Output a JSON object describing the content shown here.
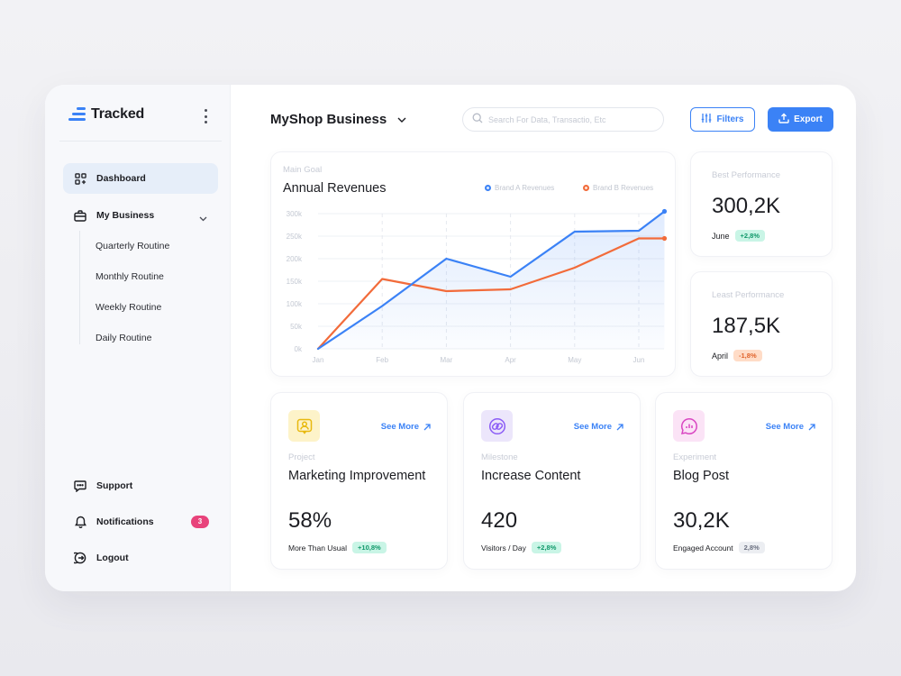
{
  "sidebar": {
    "logo_text": "Tracked",
    "nav": {
      "dashboard": "Dashboard",
      "my_business": "My Business",
      "sub_items": [
        "Quarterly Routine",
        "Monthly Routine",
        "Weekly Routine",
        "Daily Routine"
      ],
      "support": "Support",
      "notifications": "Notifications",
      "notifications_count": "3",
      "logout": "Logout"
    }
  },
  "header": {
    "business_name": "MyShop Business",
    "search_placeholder": "Search For Data, Transactio, Etc",
    "filters_label": "Filters",
    "export_label": "Export"
  },
  "chart_card": {
    "subtitle": "Main Goal",
    "title": "Annual Revenues"
  },
  "chart_data": {
    "type": "line",
    "title": "Annual Revenues",
    "categories": [
      "Jan",
      "Feb",
      "Mar",
      "Apr",
      "May",
      "Jun"
    ],
    "y_ticks": [
      "0k",
      "50k",
      "100k",
      "150k",
      "200k",
      "250k",
      "300k"
    ],
    "ylim": [
      0,
      300
    ],
    "grid": true,
    "legend_position": "top-right",
    "series": [
      {
        "name": "Brand A Revenues",
        "color": "#3b82f6",
        "x": [
          0,
          1,
          2,
          3,
          4,
          5,
          5.4
        ],
        "values": [
          0,
          95,
          200,
          160,
          260,
          262,
          305
        ]
      },
      {
        "name": "Brand B Revenues",
        "color": "#f26b3a",
        "x": [
          0,
          1,
          2,
          3,
          4,
          5,
          5.4
        ],
        "values": [
          0,
          155,
          128,
          132,
          180,
          245,
          245
        ]
      }
    ]
  },
  "stats": [
    {
      "label": "Best Performance",
      "value": "300,2K",
      "month": "June",
      "change": "+2,8%",
      "tone": "green"
    },
    {
      "label": "Least Performance",
      "value": "187,5K",
      "month": "April",
      "change": "-1,8%",
      "tone": "orange"
    }
  ],
  "cards": [
    {
      "category": "Project",
      "name": "Marketing Improvement",
      "value": "58%",
      "foot_label": "More Than Usual",
      "change": "+10,8%",
      "see_more": "See More",
      "icon": "user-square-icon",
      "icon_color": "#e8b90f",
      "icon_bg": "#fdf3c9"
    },
    {
      "category": "Milestone",
      "name": "Increase Content",
      "value": "420",
      "foot_label": "Visitors / Day",
      "change": "+2,8%",
      "see_more": "See More",
      "icon": "link-circle-icon",
      "icon_color": "#8b5cf6",
      "icon_bg": "#ece6fb"
    },
    {
      "category": "Experiment",
      "name": "Blog Post",
      "value": "30,2K",
      "foot_label": "Engaged Account",
      "change": "2,8%",
      "see_more": "See More",
      "icon": "chat-chart-icon",
      "icon_color": "#d946c2",
      "icon_bg": "#fbe3f6"
    }
  ]
}
